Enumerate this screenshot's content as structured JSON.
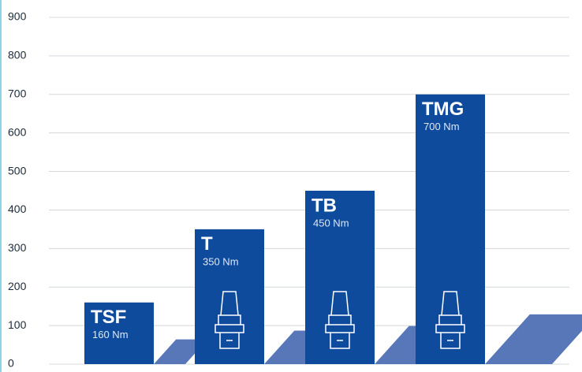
{
  "chart_data": {
    "type": "bar",
    "categories": [
      "TSF",
      "T",
      "TB",
      "TMG"
    ],
    "values": [
      160,
      350,
      450,
      700
    ],
    "value_labels": [
      "160 Nm",
      "350 Nm",
      "450 Nm",
      "700 Nm"
    ],
    "color": "#0e4b9c",
    "ylim": [
      0,
      900
    ],
    "yticks": [
      0,
      100,
      200,
      300,
      400,
      500,
      600,
      700,
      800,
      900
    ],
    "grid": true
  }
}
